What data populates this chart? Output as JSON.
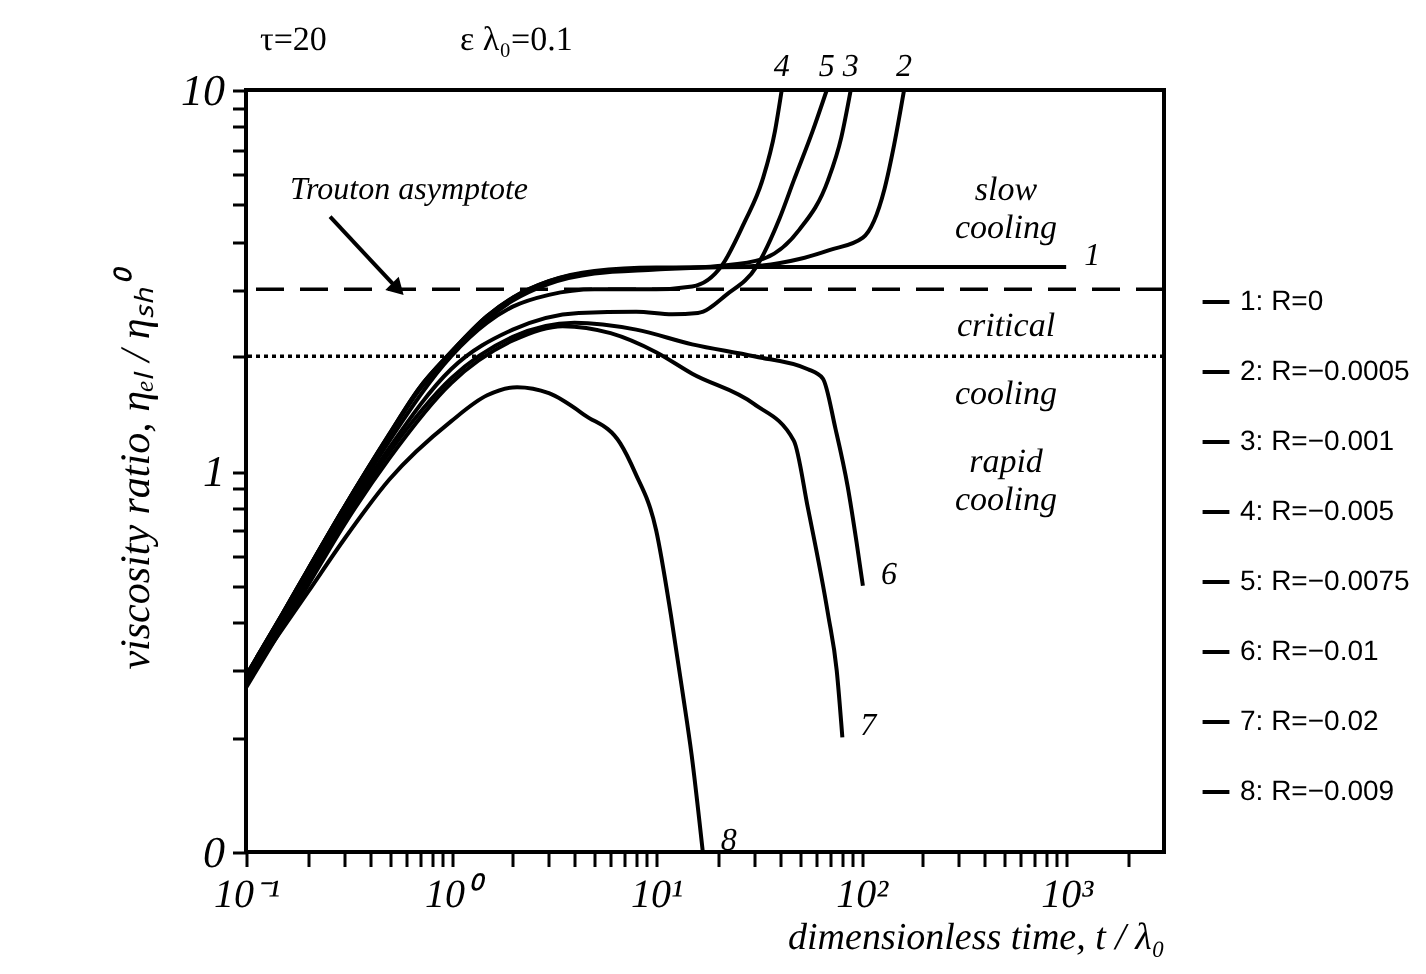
{
  "chart_data": {
    "type": "line",
    "xlabel": "dimensionless time, t / λ₀",
    "ylabel": "viscosity ratio, ηₑₗ / ηₛₕ⁰",
    "xlim": [
      0.1,
      3000
    ],
    "ylim": [
      0.1,
      10
    ],
    "xticks": [
      {
        "value": 0.1,
        "label": "10⁻¹"
      },
      {
        "value": 0.2,
        "label": null
      },
      {
        "value": 0.3,
        "label": null
      },
      {
        "value": 0.4,
        "label": null
      },
      {
        "value": 0.5,
        "label": null
      },
      {
        "value": 0.6,
        "label": null
      },
      {
        "value": 0.7,
        "label": null
      },
      {
        "value": 0.8,
        "label": null
      },
      {
        "value": 0.9,
        "label": null
      },
      {
        "value": 1,
        "label": "10⁰"
      },
      {
        "value": 2,
        "label": null
      },
      {
        "value": 3,
        "label": null
      },
      {
        "value": 4,
        "label": null
      },
      {
        "value": 5,
        "label": null
      },
      {
        "value": 6,
        "label": null
      },
      {
        "value": 7,
        "label": null
      },
      {
        "value": 8,
        "label": null
      },
      {
        "value": 9,
        "label": null
      },
      {
        "value": 10,
        "label": "10¹"
      },
      {
        "value": 20,
        "label": null
      },
      {
        "value": 30,
        "label": null
      },
      {
        "value": 40,
        "label": null
      },
      {
        "value": 50,
        "label": null
      },
      {
        "value": 60,
        "label": null
      },
      {
        "value": 70,
        "label": null
      },
      {
        "value": 80,
        "label": null
      },
      {
        "value": 90,
        "label": null
      },
      {
        "value": 100,
        "label": "10²"
      },
      {
        "value": 200,
        "label": null
      },
      {
        "value": 300,
        "label": null
      },
      {
        "value": 400,
        "label": null
      },
      {
        "value": 500,
        "label": null
      },
      {
        "value": 600,
        "label": null
      },
      {
        "value": 700,
        "label": null
      },
      {
        "value": 800,
        "label": null
      },
      {
        "value": 900,
        "label": null
      },
      {
        "value": 1000,
        "label": "10³"
      },
      {
        "value": 2000,
        "label": null
      }
    ],
    "yticks": [
      {
        "value": 0.1,
        "label": "0"
      },
      {
        "value": 0.2,
        "label": null
      },
      {
        "value": 0.3,
        "label": null
      },
      {
        "value": 0.4,
        "label": null
      },
      {
        "value": 0.5,
        "label": null
      },
      {
        "value": 0.6,
        "label": null
      },
      {
        "value": 0.7,
        "label": null
      },
      {
        "value": 0.8,
        "label": null
      },
      {
        "value": 0.9,
        "label": null
      },
      1,
      {
        "value": 2,
        "label": null
      },
      {
        "value": 3,
        "label": null
      },
      {
        "value": 4,
        "label": null
      },
      {
        "value": 5,
        "label": null
      },
      {
        "value": 6,
        "label": null
      },
      {
        "value": 7,
        "label": null
      },
      {
        "value": 8,
        "label": null
      },
      {
        "value": 9,
        "label": null
      },
      10
    ],
    "log": "xy",
    "grid": false,
    "legend": "right",
    "marker": "none",
    "line_style": "solid",
    "series": [
      {
        "name": "1: R=0",
        "color": "#000000",
        "x": [
          0.1,
          0.15,
          0.2,
          0.3,
          0.5,
          0.7,
          1,
          1.5,
          2,
          3,
          5,
          10,
          30,
          100,
          1000
        ],
        "values": [
          0.29,
          0.42,
          0.55,
          0.8,
          1.25,
          1.65,
          2.05,
          2.55,
          2.85,
          3.15,
          3.35,
          3.42,
          3.43,
          3.43,
          3.43
        ]
      },
      {
        "name": "2: R=−0.0005",
        "color": "#000000",
        "x": [
          0.1,
          0.15,
          0.2,
          0.3,
          0.5,
          0.7,
          1,
          1.5,
          2,
          3,
          5,
          10,
          30,
          50,
          70,
          102,
          130,
          145,
          162
        ],
        "values": [
          0.29,
          0.42,
          0.55,
          0.8,
          1.25,
          1.65,
          2.05,
          2.55,
          2.85,
          3.15,
          3.33,
          3.4,
          3.45,
          3.6,
          3.8,
          4.1,
          5.5,
          7.2,
          10
        ]
      },
      {
        "name": "3: R=−0.001",
        "color": "#000000",
        "x": [
          0.1,
          0.15,
          0.2,
          0.3,
          0.5,
          0.7,
          1,
          1.5,
          2,
          3,
          5,
          10,
          20,
          33,
          50,
          69,
          80,
          89
        ],
        "values": [
          0.29,
          0.42,
          0.55,
          0.8,
          1.24,
          1.63,
          2.02,
          2.5,
          2.8,
          3.1,
          3.3,
          3.38,
          3.45,
          3.6,
          4.3,
          5.8,
          7.5,
          10
        ]
      },
      {
        "name": "4: R=−0.005",
        "color": "#000000",
        "x": [
          0.1,
          0.2,
          0.3,
          0.5,
          1,
          1.5,
          2,
          3,
          5,
          10,
          15,
          21,
          27,
          33,
          38,
          41
        ],
        "values": [
          0.28,
          0.53,
          0.77,
          1.2,
          2.0,
          2.45,
          2.7,
          2.9,
          3.0,
          3.0,
          3.05,
          3.47,
          4.5,
          5.8,
          7.8,
          10
        ]
      },
      {
        "name": "5: R=−0.0075",
        "color": "#000000",
        "x": [
          0.1,
          0.2,
          0.3,
          0.5,
          1,
          2,
          4.2,
          8,
          12,
          16,
          22,
          31,
          40,
          47,
          58,
          68
        ],
        "values": [
          0.28,
          0.52,
          0.75,
          1.15,
          1.85,
          2.35,
          2.6,
          2.62,
          2.58,
          2.6,
          2.9,
          3.45,
          4.6,
          5.8,
          7.8,
          10
        ]
      },
      {
        "name": "6: R=−0.01",
        "color": "#000000",
        "x": [
          0.1,
          0.2,
          0.3,
          0.5,
          1,
          2,
          4,
          8,
          15,
          30,
          55,
          65,
          75,
          86,
          95,
          102
        ],
        "values": [
          0.28,
          0.52,
          0.74,
          1.12,
          1.75,
          2.25,
          2.45,
          2.35,
          2.15,
          2.0,
          1.85,
          1.75,
          1.29,
          0.91,
          0.65,
          0.5
        ]
      },
      {
        "name": "7: R=−0.02",
        "color": "#000000",
        "x": [
          0.1,
          0.2,
          0.3,
          0.5,
          1,
          2,
          3.5,
          6,
          10,
          15,
          30,
          47,
          55,
          69,
          76,
          81
        ],
        "values": [
          0.27,
          0.5,
          0.72,
          1.08,
          1.7,
          2.2,
          2.4,
          2.3,
          2.05,
          1.8,
          1.5,
          1.2,
          0.8,
          0.42,
          0.3,
          0.2
        ]
      },
      {
        "name": "8: R=−0.009",
        "color": "#000000",
        "x": [
          0.1,
          0.2,
          0.3,
          0.5,
          1,
          1.5,
          2.1,
          3,
          4.5,
          6.7,
          7.9,
          10,
          11.8,
          13.5,
          14.9,
          16.9
        ],
        "values": [
          0.28,
          0.48,
          0.66,
          0.95,
          1.35,
          1.58,
          1.66,
          1.6,
          1.4,
          1.18,
          0.99,
          0.7,
          0.42,
          0.26,
          0.18,
          0.1
        ]
      }
    ],
    "ref_lines": [
      {
        "axis": "y",
        "value": 3,
        "line_style": "dashed",
        "color": "#000000"
      },
      {
        "axis": "y",
        "value": 2,
        "line_style": "dotted",
        "color": "#000000"
      }
    ],
    "annotations": [
      "τ=20",
      "ε λ₀=0.1",
      "slow cooling",
      "critical cooling",
      "rapid cooling",
      {
        "text": "Trouton asymptote",
        "x": 0.55,
        "y": 3
      },
      {
        "text": "1",
        "x": 1000,
        "y": 3.43
      },
      {
        "text": "2",
        "x": 162,
        "y": 10
      },
      {
        "text": "3",
        "x": 89,
        "y": 10
      },
      {
        "text": "4",
        "x": 41,
        "y": 10
      },
      {
        "text": "5",
        "x": 68,
        "y": 10
      },
      {
        "text": "6",
        "x": 102,
        "y": 0.5
      },
      {
        "text": "7",
        "x": 81,
        "y": 0.2
      },
      {
        "text": "8",
        "x": 16.9,
        "y": 0.1
      }
    ]
  }
}
